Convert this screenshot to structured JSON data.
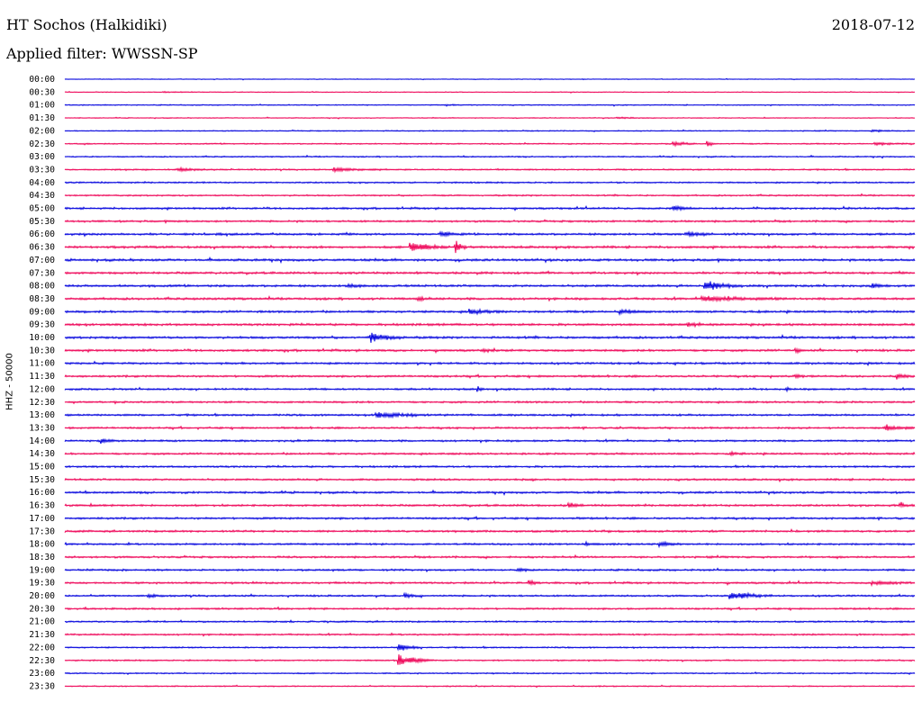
{
  "header": {
    "station": "HT Sochos (Halkidiki)",
    "date": "2018-07-12",
    "filter": "Applied filter: WWSSN-SP"
  },
  "chart_data": {
    "type": "line",
    "title": "HT Sochos (Halkidiki)",
    "subtitle": "Applied filter: WWSSN-SP",
    "ylabel": "HHZ - 50000",
    "xlabel": "",
    "grid": false,
    "row_times": [
      "00:00",
      "00:30",
      "01:00",
      "01:30",
      "02:00",
      "02:30",
      "03:00",
      "03:30",
      "04:00",
      "04:30",
      "05:00",
      "05:30",
      "06:00",
      "06:30",
      "07:00",
      "07:30",
      "08:00",
      "08:30",
      "09:00",
      "09:30",
      "10:00",
      "10:30",
      "11:00",
      "11:30",
      "12:00",
      "12:30",
      "13:00",
      "13:30",
      "14:00",
      "14:30",
      "15:00",
      "15:30",
      "16:00",
      "16:30",
      "17:00",
      "17:30",
      "18:00",
      "18:30",
      "19:00",
      "19:30",
      "20:00",
      "20:30",
      "21:00",
      "21:30",
      "22:00",
      "22:30",
      "23:00",
      "23:30"
    ],
    "trace_colors": [
      "#0000dd",
      "#ee0055"
    ],
    "row_noise": [
      0.3,
      0.35,
      0.45,
      0.35,
      0.45,
      0.55,
      0.55,
      0.6,
      0.65,
      0.65,
      0.8,
      0.8,
      0.9,
      0.95,
      0.95,
      0.9,
      0.95,
      0.95,
      0.9,
      0.95,
      0.95,
      0.9,
      0.85,
      0.85,
      0.8,
      0.8,
      0.8,
      0.8,
      0.8,
      0.8,
      0.8,
      0.8,
      0.85,
      0.85,
      0.85,
      0.85,
      0.8,
      0.8,
      0.8,
      0.8,
      0.75,
      0.75,
      0.7,
      0.7,
      0.6,
      0.6,
      0.55,
      0.5
    ],
    "events": [
      {
        "row": 1,
        "minute": 3.5,
        "amplitude": 0.3,
        "duration": 1.0
      },
      {
        "row": 2,
        "minute": 13.5,
        "amplitude": 0.4,
        "duration": 0.6
      },
      {
        "row": 3,
        "minute": 19.5,
        "amplitude": 0.5,
        "duration": 1.2
      },
      {
        "row": 4,
        "minute": 28.5,
        "amplitude": 0.5,
        "duration": 1.0
      },
      {
        "row": 5,
        "minute": 21.5,
        "amplitude": 1.2,
        "duration": 0.8
      },
      {
        "row": 5,
        "minute": 22.7,
        "amplitude": 1.6,
        "duration": 0.3
      },
      {
        "row": 5,
        "minute": 28.6,
        "amplitude": 0.8,
        "duration": 1.2
      },
      {
        "row": 7,
        "minute": 4.0,
        "amplitude": 0.8,
        "duration": 1.5
      },
      {
        "row": 7,
        "minute": 9.5,
        "amplitude": 1.0,
        "duration": 2.0
      },
      {
        "row": 10,
        "minute": 21.5,
        "amplitude": 1.4,
        "duration": 0.7
      },
      {
        "row": 12,
        "minute": 13.3,
        "amplitude": 1.1,
        "duration": 0.8
      },
      {
        "row": 12,
        "minute": 22.0,
        "amplitude": 1.0,
        "duration": 1.0
      },
      {
        "row": 13,
        "minute": 12.2,
        "amplitude": 2.8,
        "duration": 1.4
      },
      {
        "row": 13,
        "minute": 13.8,
        "amplitude": 3.5,
        "duration": 0.4
      },
      {
        "row": 16,
        "minute": 10.0,
        "amplitude": 1.2,
        "duration": 0.5
      },
      {
        "row": 16,
        "minute": 22.6,
        "amplitude": 2.6,
        "duration": 1.3
      },
      {
        "row": 16,
        "minute": 28.5,
        "amplitude": 1.1,
        "duration": 0.7
      },
      {
        "row": 17,
        "minute": 12.5,
        "amplitude": 1.1,
        "duration": 0.4
      },
      {
        "row": 17,
        "minute": 22.5,
        "amplitude": 1.3,
        "duration": 3.0
      },
      {
        "row": 18,
        "minute": 14.3,
        "amplitude": 1.3,
        "duration": 1.2
      },
      {
        "row": 18,
        "minute": 19.6,
        "amplitude": 1.0,
        "duration": 1.0
      },
      {
        "row": 19,
        "minute": 22.0,
        "amplitude": 0.9,
        "duration": 0.8
      },
      {
        "row": 20,
        "minute": 10.8,
        "amplitude": 2.3,
        "duration": 1.3
      },
      {
        "row": 21,
        "minute": 14.8,
        "amplitude": 0.8,
        "duration": 0.8
      },
      {
        "row": 21,
        "minute": 25.8,
        "amplitude": 1.1,
        "duration": 0.3
      },
      {
        "row": 23,
        "minute": 25.8,
        "amplitude": 1.2,
        "duration": 0.3
      },
      {
        "row": 23,
        "minute": 29.4,
        "amplitude": 1.2,
        "duration": 0.8
      },
      {
        "row": 24,
        "minute": 14.6,
        "amplitude": 1.1,
        "duration": 0.2
      },
      {
        "row": 24,
        "minute": 25.5,
        "amplitude": 0.8,
        "duration": 0.3
      },
      {
        "row": 26,
        "minute": 11.0,
        "amplitude": 1.5,
        "duration": 2.0
      },
      {
        "row": 27,
        "minute": 29.0,
        "amplitude": 1.4,
        "duration": 1.0
      },
      {
        "row": 28,
        "minute": 1.3,
        "amplitude": 1.3,
        "duration": 0.5
      },
      {
        "row": 29,
        "minute": 23.5,
        "amplitude": 1.0,
        "duration": 0.5
      },
      {
        "row": 33,
        "minute": 17.8,
        "amplitude": 1.3,
        "duration": 0.6
      },
      {
        "row": 33,
        "minute": 29.5,
        "amplitude": 1.4,
        "duration": 0.4
      },
      {
        "row": 36,
        "minute": 18.4,
        "amplitude": 1.0,
        "duration": 0.5
      },
      {
        "row": 36,
        "minute": 21.0,
        "amplitude": 1.0,
        "duration": 0.8
      },
      {
        "row": 38,
        "minute": 16.0,
        "amplitude": 0.9,
        "duration": 0.5
      },
      {
        "row": 39,
        "minute": 16.4,
        "amplitude": 1.7,
        "duration": 0.3
      },
      {
        "row": 39,
        "minute": 28.5,
        "amplitude": 1.0,
        "duration": 1.5
      },
      {
        "row": 40,
        "minute": 23.5,
        "amplitude": 2.2,
        "duration": 1.5
      },
      {
        "row": 40,
        "minute": 12.0,
        "amplitude": 1.2,
        "duration": 0.6
      },
      {
        "row": 40,
        "minute": 3.0,
        "amplitude": 1.0,
        "duration": 0.6
      },
      {
        "row": 44,
        "minute": 11.8,
        "amplitude": 2.0,
        "duration": 0.8
      },
      {
        "row": 45,
        "minute": 11.8,
        "amplitude": 3.5,
        "duration": 1.2
      }
    ]
  }
}
